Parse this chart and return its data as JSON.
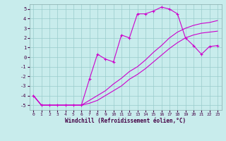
{
  "xlabel": "Windchill (Refroidissement éolien,°C)",
  "background_color": "#c8ecec",
  "grid_color": "#99cccc",
  "line_color": "#cc00cc",
  "xlim": [
    -0.5,
    23.5
  ],
  "ylim": [
    -5.5,
    5.5
  ],
  "xticks": [
    0,
    1,
    2,
    3,
    4,
    5,
    6,
    7,
    8,
    9,
    10,
    11,
    12,
    13,
    14,
    15,
    16,
    17,
    18,
    19,
    20,
    21,
    22,
    23
  ],
  "yticks": [
    -5,
    -4,
    -3,
    -2,
    -1,
    0,
    1,
    2,
    3,
    4,
    5
  ],
  "line1_x": [
    0,
    1,
    2,
    3,
    4,
    5,
    6,
    7,
    8,
    9,
    10,
    11,
    12,
    13,
    14,
    15,
    16,
    17,
    18,
    19,
    20,
    21,
    22,
    23
  ],
  "line1_y": [
    -4.0,
    -5.0,
    -5.0,
    -5.0,
    -5.0,
    -5.0,
    -5.0,
    -4.8,
    -4.5,
    -4.0,
    -3.5,
    -3.0,
    -2.3,
    -1.8,
    -1.2,
    -0.5,
    0.2,
    0.9,
    1.5,
    2.0,
    2.3,
    2.5,
    2.6,
    2.7
  ],
  "line2_x": [
    0,
    1,
    2,
    3,
    4,
    5,
    6,
    7,
    8,
    9,
    10,
    11,
    12,
    13,
    14,
    15,
    16,
    17,
    18,
    19,
    20,
    21,
    22,
    23
  ],
  "line2_y": [
    -4.0,
    -5.0,
    -5.0,
    -5.0,
    -5.0,
    -5.0,
    -5.0,
    -4.5,
    -4.0,
    -3.5,
    -2.8,
    -2.2,
    -1.5,
    -1.0,
    -0.3,
    0.5,
    1.2,
    2.0,
    2.6,
    3.0,
    3.3,
    3.5,
    3.6,
    3.8
  ],
  "line3_x": [
    0,
    1,
    2,
    3,
    4,
    5,
    6,
    7,
    8,
    9,
    10,
    11,
    12,
    13,
    14,
    15,
    16,
    17,
    18,
    19,
    20,
    21,
    22,
    23
  ],
  "line3_y": [
    -4.0,
    -5.0,
    -5.0,
    -5.0,
    -5.0,
    -5.0,
    -5.0,
    -2.3,
    0.3,
    -0.2,
    -0.5,
    2.3,
    2.0,
    4.5,
    4.5,
    4.8,
    5.2,
    5.0,
    4.5,
    2.0,
    1.2,
    0.3,
    1.1,
    1.2
  ]
}
